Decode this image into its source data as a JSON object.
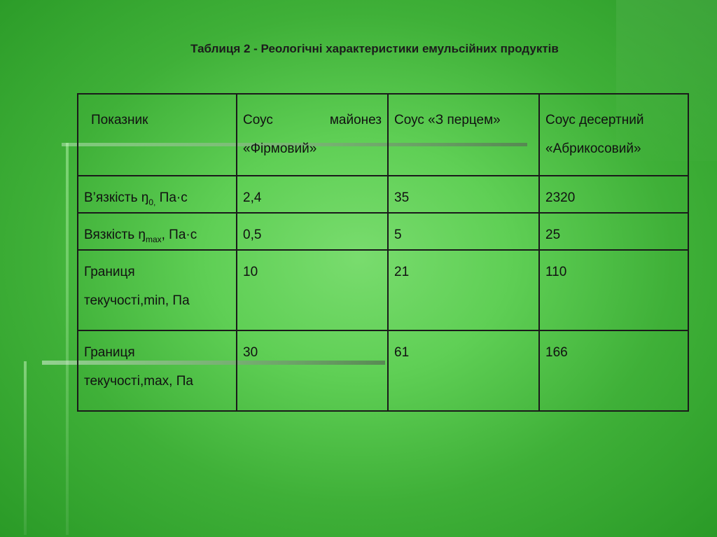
{
  "title": "Таблиця 2 - Реологічні характеристики емульсійних продуктів",
  "table": {
    "headers": {
      "indicator": "Показник",
      "mayo_word1": "Соус",
      "mayo_word2": "майонез",
      "mayo_line2": "«Фірмовий»",
      "pepper": "Соус «З перцем»",
      "dessert_line1": "Соус десертний",
      "dessert_line2": "«Абрикосовий»"
    },
    "rows": [
      {
        "label_main": "В’язкість ŋ",
        "label_sub": "0,",
        "label_tail": " Па·с",
        "values": [
          "2,4",
          "35",
          "2320"
        ]
      },
      {
        "label_main": "Вязкість ŋ",
        "label_sub": "max",
        "label_tail": ", Па·с",
        "values": [
          "0,5",
          "5",
          "25"
        ]
      },
      {
        "label_line1": "Границя",
        "label_line2": "текучості,min, Па",
        "values": [
          "10",
          "21",
          "110"
        ]
      },
      {
        "label_line1": "Границя",
        "label_line2": "текучості,max, Па",
        "values": [
          "30",
          "61",
          "166"
        ]
      }
    ]
  }
}
